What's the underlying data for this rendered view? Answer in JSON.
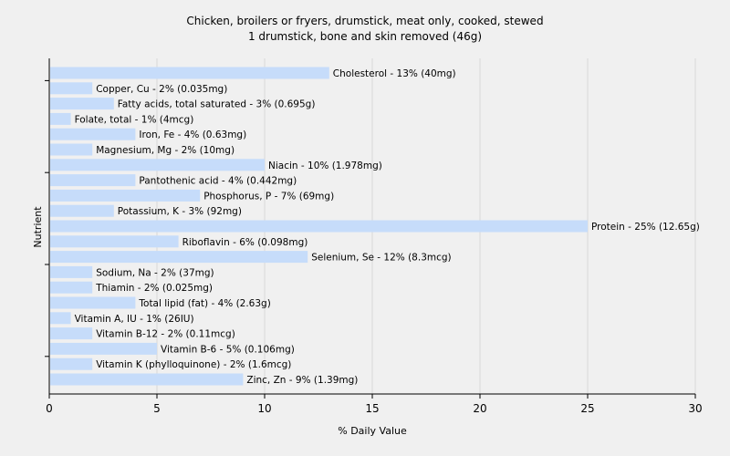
{
  "chart_data": {
    "type": "bar",
    "orientation": "horizontal",
    "title": "Chicken, broilers or fryers, drumstick, meat only, cooked, stewed",
    "subtitle": "1 drumstick, bone and skin removed (46g)",
    "xlabel": "% Daily Value",
    "ylabel": "Nutrient",
    "xlim": [
      0,
      30
    ],
    "xticks": [
      0,
      5,
      10,
      15,
      20,
      25,
      30
    ],
    "grid": "vertical",
    "bar_color": "#c6dcfa",
    "categories": [
      "Cholesterol",
      "Copper, Cu",
      "Fatty acids, total saturated",
      "Folate, total",
      "Iron, Fe",
      "Magnesium, Mg",
      "Niacin",
      "Pantothenic acid",
      "Phosphorus, P",
      "Potassium, K",
      "Protein",
      "Riboflavin",
      "Selenium, Se",
      "Sodium, Na",
      "Thiamin",
      "Total lipid (fat)",
      "Vitamin A, IU",
      "Vitamin B-12",
      "Vitamin B-6",
      "Vitamin K (phylloquinone)",
      "Zinc, Zn"
    ],
    "values": [
      13,
      2,
      3,
      1,
      4,
      2,
      10,
      4,
      7,
      3,
      25,
      6,
      12,
      2,
      2,
      4,
      1,
      2,
      5,
      2,
      9
    ],
    "labels": [
      "Cholesterol - 13% (40mg)",
      "Copper, Cu - 2% (0.035mg)",
      "Fatty acids, total saturated - 3% (0.695g)",
      "Folate, total - 1% (4mcg)",
      "Iron, Fe - 4% (0.63mg)",
      "Magnesium, Mg - 2% (10mg)",
      "Niacin - 10% (1.978mg)",
      "Pantothenic acid - 4% (0.442mg)",
      "Phosphorus, P - 7% (69mg)",
      "Potassium, K - 3% (92mg)",
      "Protein - 25% (12.65g)",
      "Riboflavin - 6% (0.098mg)",
      "Selenium, Se - 12% (8.3mcg)",
      "Sodium, Na - 2% (37mg)",
      "Thiamin - 2% (0.025mg)",
      "Total lipid (fat) - 4% (2.63g)",
      "Vitamin A, IU - 1% (26IU)",
      "Vitamin B-12 - 2% (0.11mcg)",
      "Vitamin B-6 - 5% (0.106mg)",
      "Vitamin K (phylloquinone) - 2% (1.6mcg)",
      "Zinc, Zn - 9% (1.39mg)"
    ]
  }
}
